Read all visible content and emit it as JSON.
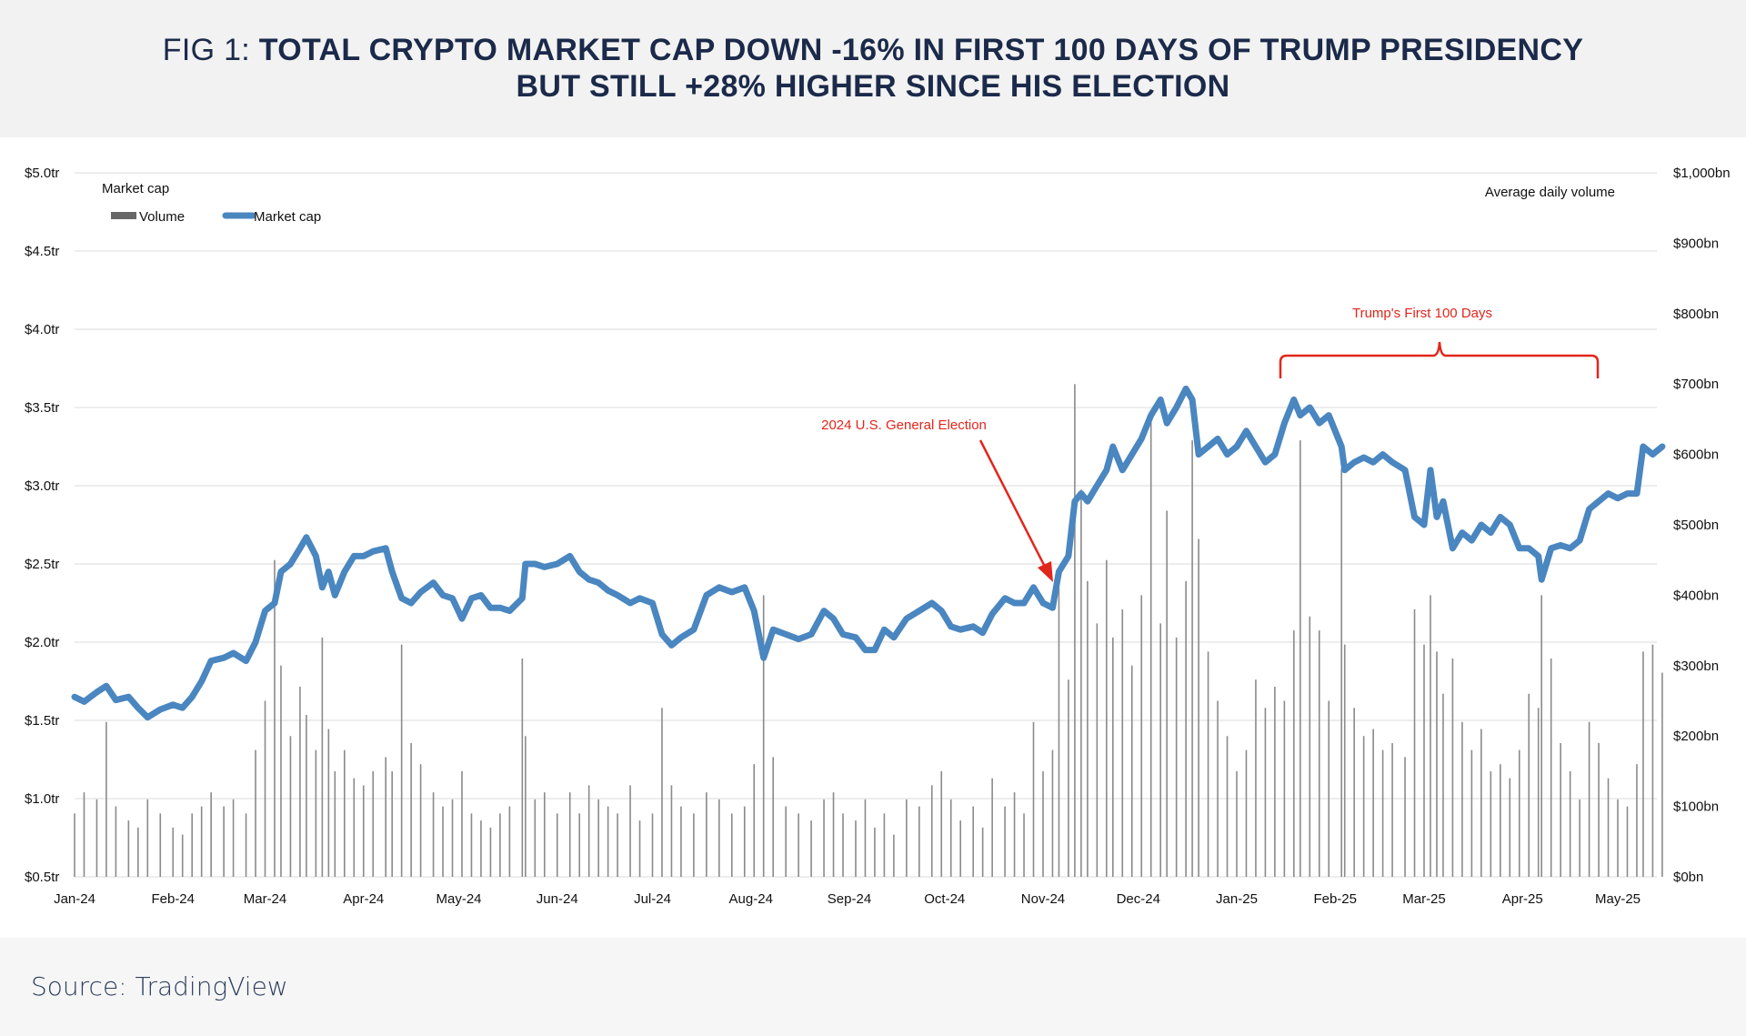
{
  "header": {
    "title_prefix": "FIG 1: ",
    "title_line1": "TOTAL CRYPTO MARKET CAP DOWN -16% IN FIRST 100 DAYS OF TRUMP PRESIDENCY",
    "title_line2": "BUT STILL +28% HIGHER SINCE HIS ELECTION"
  },
  "footer": {
    "source": "Source: TradingView"
  },
  "chart_data": {
    "type": "bar+line",
    "left_axis": {
      "label": "Market cap",
      "range": [
        0.5,
        5.0
      ],
      "ticks": [
        "$0.5tr",
        "$1.0tr",
        "$1.5tr",
        "$2.0tr",
        "$2.5tr",
        "$3.0tr",
        "$3.5tr",
        "$4.0tr",
        "$4.5tr",
        "$5.0tr"
      ]
    },
    "right_axis": {
      "label": "Average daily volume",
      "range": [
        0,
        1000
      ],
      "ticks": [
        "$0bn",
        "$100bn",
        "$200bn",
        "$300bn",
        "$400bn",
        "$500bn",
        "$600bn",
        "$700bn",
        "$800bn",
        "$900bn",
        "$1,000bn"
      ]
    },
    "x_ticks": [
      [
        "2024-01-01",
        "Jan-24"
      ],
      [
        "2024-02-01",
        "Feb-24"
      ],
      [
        "2024-03-01",
        "Mar-24"
      ],
      [
        "2024-04-01",
        "Apr-24"
      ],
      [
        "2024-05-01",
        "May-24"
      ],
      [
        "2024-06-01",
        "Jun-24"
      ],
      [
        "2024-07-01",
        "Jul-24"
      ],
      [
        "2024-08-01",
        "Aug-24"
      ],
      [
        "2024-09-01",
        "Sep-24"
      ],
      [
        "2024-10-01",
        "Oct-24"
      ],
      [
        "2024-11-01",
        "Nov-24"
      ],
      [
        "2024-12-01",
        "Dec-24"
      ],
      [
        "2025-01-01",
        "Jan-25"
      ],
      [
        "2025-02-01",
        "Feb-25"
      ],
      [
        "2025-03-01",
        "Mar-25"
      ],
      [
        "2025-04-01",
        "Apr-25"
      ],
      [
        "2025-05-01",
        "May-25"
      ]
    ],
    "grid": true,
    "legend": {
      "position": "top-left",
      "items": [
        {
          "name": "Volume",
          "color": "#666666"
        },
        {
          "name": "Market cap",
          "color": "#4a86c0"
        }
      ]
    },
    "annotations": [
      {
        "text": "2024 U.S. General Election",
        "date": "2024-11-05"
      },
      {
        "text": "Trump's First 100 Days",
        "from": "2025-01-20",
        "to": "2025-04-30"
      }
    ],
    "annotation_color": "#e1261c",
    "series_columns": [
      "date",
      "market_cap_tr",
      "volume_bn"
    ],
    "series": [
      [
        "2024-01-01",
        1.65,
        90
      ],
      [
        "2024-01-04",
        1.62,
        120
      ],
      [
        "2024-01-08",
        1.68,
        110
      ],
      [
        "2024-01-11",
        1.72,
        220
      ],
      [
        "2024-01-14",
        1.63,
        100
      ],
      [
        "2024-01-18",
        1.65,
        80
      ],
      [
        "2024-01-21",
        1.58,
        70
      ],
      [
        "2024-01-24",
        1.52,
        110
      ],
      [
        "2024-01-28",
        1.57,
        90
      ],
      [
        "2024-02-01",
        1.6,
        70
      ],
      [
        "2024-02-04",
        1.58,
        60
      ],
      [
        "2024-02-07",
        1.65,
        90
      ],
      [
        "2024-02-10",
        1.75,
        100
      ],
      [
        "2024-02-13",
        1.88,
        120
      ],
      [
        "2024-02-17",
        1.9,
        100
      ],
      [
        "2024-02-20",
        1.93,
        110
      ],
      [
        "2024-02-24",
        1.88,
        90
      ],
      [
        "2024-02-27",
        2.0,
        180
      ],
      [
        "2024-03-01",
        2.2,
        250
      ],
      [
        "2024-03-04",
        2.25,
        450
      ],
      [
        "2024-03-06",
        2.45,
        300
      ],
      [
        "2024-03-09",
        2.5,
        200
      ],
      [
        "2024-03-12",
        2.6,
        270
      ],
      [
        "2024-03-14",
        2.67,
        230
      ],
      [
        "2024-03-17",
        2.55,
        180
      ],
      [
        "2024-03-19",
        2.35,
        340
      ],
      [
        "2024-03-21",
        2.45,
        210
      ],
      [
        "2024-03-23",
        2.3,
        150
      ],
      [
        "2024-03-26",
        2.45,
        180
      ],
      [
        "2024-03-29",
        2.55,
        140
      ],
      [
        "2024-04-01",
        2.55,
        130
      ],
      [
        "2024-04-04",
        2.58,
        150
      ],
      [
        "2024-04-08",
        2.6,
        170
      ],
      [
        "2024-04-10",
        2.45,
        150
      ],
      [
        "2024-04-13",
        2.28,
        330
      ],
      [
        "2024-04-16",
        2.25,
        190
      ],
      [
        "2024-04-19",
        2.32,
        160
      ],
      [
        "2024-04-23",
        2.38,
        120
      ],
      [
        "2024-04-26",
        2.3,
        100
      ],
      [
        "2024-04-29",
        2.28,
        110
      ],
      [
        "2024-05-02",
        2.15,
        150
      ],
      [
        "2024-05-05",
        2.28,
        90
      ],
      [
        "2024-05-08",
        2.3,
        80
      ],
      [
        "2024-05-11",
        2.22,
        70
      ],
      [
        "2024-05-14",
        2.22,
        90
      ],
      [
        "2024-05-17",
        2.2,
        100
      ],
      [
        "2024-05-21",
        2.28,
        310
      ],
      [
        "2024-05-22",
        2.5,
        200
      ],
      [
        "2024-05-25",
        2.5,
        110
      ],
      [
        "2024-05-28",
        2.48,
        120
      ],
      [
        "2024-06-01",
        2.5,
        90
      ],
      [
        "2024-06-05",
        2.55,
        120
      ],
      [
        "2024-06-08",
        2.45,
        90
      ],
      [
        "2024-06-11",
        2.4,
        130
      ],
      [
        "2024-06-14",
        2.38,
        110
      ],
      [
        "2024-06-17",
        2.33,
        100
      ],
      [
        "2024-06-20",
        2.3,
        90
      ],
      [
        "2024-06-24",
        2.25,
        130
      ],
      [
        "2024-06-27",
        2.28,
        80
      ],
      [
        "2024-07-01",
        2.25,
        90
      ],
      [
        "2024-07-04",
        2.05,
        240
      ],
      [
        "2024-07-07",
        1.98,
        130
      ],
      [
        "2024-07-10",
        2.03,
        100
      ],
      [
        "2024-07-14",
        2.08,
        90
      ],
      [
        "2024-07-18",
        2.3,
        120
      ],
      [
        "2024-07-22",
        2.35,
        110
      ],
      [
        "2024-07-26",
        2.32,
        90
      ],
      [
        "2024-07-30",
        2.35,
        100
      ],
      [
        "2024-08-02",
        2.2,
        160
      ],
      [
        "2024-08-05",
        1.9,
        400
      ],
      [
        "2024-08-08",
        2.08,
        170
      ],
      [
        "2024-08-12",
        2.05,
        100
      ],
      [
        "2024-08-16",
        2.02,
        90
      ],
      [
        "2024-08-20",
        2.05,
        80
      ],
      [
        "2024-08-24",
        2.2,
        110
      ],
      [
        "2024-08-27",
        2.15,
        120
      ],
      [
        "2024-08-30",
        2.05,
        90
      ],
      [
        "2024-09-03",
        2.03,
        80
      ],
      [
        "2024-09-06",
        1.95,
        110
      ],
      [
        "2024-09-09",
        1.95,
        70
      ],
      [
        "2024-09-12",
        2.08,
        90
      ],
      [
        "2024-09-15",
        2.03,
        60
      ],
      [
        "2024-09-19",
        2.15,
        110
      ],
      [
        "2024-09-23",
        2.2,
        100
      ],
      [
        "2024-09-27",
        2.25,
        130
      ],
      [
        "2024-09-30",
        2.2,
        150
      ],
      [
        "2024-10-03",
        2.1,
        110
      ],
      [
        "2024-10-06",
        2.08,
        80
      ],
      [
        "2024-10-10",
        2.1,
        100
      ],
      [
        "2024-10-13",
        2.06,
        70
      ],
      [
        "2024-10-16",
        2.18,
        140
      ],
      [
        "2024-10-20",
        2.28,
        100
      ],
      [
        "2024-10-23",
        2.25,
        120
      ],
      [
        "2024-10-26",
        2.25,
        90
      ],
      [
        "2024-10-29",
        2.35,
        220
      ],
      [
        "2024-11-01",
        2.25,
        150
      ],
      [
        "2024-11-04",
        2.22,
        180
      ],
      [
        "2024-11-06",
        2.45,
        410
      ],
      [
        "2024-11-09",
        2.55,
        280
      ],
      [
        "2024-11-11",
        2.9,
        700
      ],
      [
        "2024-11-13",
        2.95,
        550
      ],
      [
        "2024-11-15",
        2.9,
        420
      ],
      [
        "2024-11-18",
        3.0,
        360
      ],
      [
        "2024-11-21",
        3.1,
        450
      ],
      [
        "2024-11-23",
        3.25,
        340
      ],
      [
        "2024-11-26",
        3.1,
        380
      ],
      [
        "2024-11-29",
        3.2,
        300
      ],
      [
        "2024-12-02",
        3.3,
        400
      ],
      [
        "2024-12-05",
        3.45,
        650
      ],
      [
        "2024-12-08",
        3.55,
        360
      ],
      [
        "2024-12-10",
        3.4,
        520
      ],
      [
        "2024-12-13",
        3.5,
        340
      ],
      [
        "2024-12-16",
        3.62,
        420
      ],
      [
        "2024-12-18",
        3.55,
        620
      ],
      [
        "2024-12-20",
        3.2,
        480
      ],
      [
        "2024-12-23",
        3.25,
        320
      ],
      [
        "2024-12-26",
        3.3,
        250
      ],
      [
        "2024-12-29",
        3.2,
        200
      ],
      [
        "2025-01-01",
        3.25,
        150
      ],
      [
        "2025-01-04",
        3.35,
        180
      ],
      [
        "2025-01-07",
        3.25,
        280
      ],
      [
        "2025-01-10",
        3.15,
        240
      ],
      [
        "2025-01-13",
        3.2,
        270
      ],
      [
        "2025-01-16",
        3.4,
        250
      ],
      [
        "2025-01-19",
        3.55,
        350
      ],
      [
        "2025-01-21",
        3.45,
        620
      ],
      [
        "2025-01-24",
        3.5,
        370
      ],
      [
        "2025-01-27",
        3.4,
        350
      ],
      [
        "2025-01-30",
        3.45,
        250
      ],
      [
        "2025-02-03",
        3.25,
        580
      ],
      [
        "2025-02-04",
        3.1,
        330
      ],
      [
        "2025-02-07",
        3.15,
        240
      ],
      [
        "2025-02-10",
        3.18,
        200
      ],
      [
        "2025-02-13",
        3.15,
        210
      ],
      [
        "2025-02-16",
        3.2,
        180
      ],
      [
        "2025-02-19",
        3.15,
        190
      ],
      [
        "2025-02-23",
        3.1,
        170
      ],
      [
        "2025-02-26",
        2.8,
        380
      ],
      [
        "2025-03-01",
        2.75,
        330
      ],
      [
        "2025-03-03",
        3.1,
        400
      ],
      [
        "2025-03-05",
        2.8,
        320
      ],
      [
        "2025-03-07",
        2.9,
        260
      ],
      [
        "2025-03-10",
        2.6,
        310
      ],
      [
        "2025-03-13",
        2.7,
        220
      ],
      [
        "2025-03-16",
        2.65,
        180
      ],
      [
        "2025-03-19",
        2.75,
        210
      ],
      [
        "2025-03-22",
        2.7,
        150
      ],
      [
        "2025-03-25",
        2.8,
        160
      ],
      [
        "2025-03-28",
        2.75,
        140
      ],
      [
        "2025-03-31",
        2.6,
        180
      ],
      [
        "2025-04-03",
        2.6,
        260
      ],
      [
        "2025-04-06",
        2.55,
        240
      ],
      [
        "2025-04-07",
        2.4,
        400
      ],
      [
        "2025-04-10",
        2.6,
        310
      ],
      [
        "2025-04-13",
        2.62,
        190
      ],
      [
        "2025-04-16",
        2.6,
        150
      ],
      [
        "2025-04-19",
        2.65,
        110
      ],
      [
        "2025-04-22",
        2.85,
        220
      ],
      [
        "2025-04-25",
        2.9,
        190
      ],
      [
        "2025-04-28",
        2.95,
        140
      ],
      [
        "2025-05-01",
        2.92,
        110
      ],
      [
        "2025-05-04",
        2.95,
        100
      ],
      [
        "2025-05-07",
        2.95,
        160
      ],
      [
        "2025-05-09",
        3.25,
        320
      ],
      [
        "2025-05-12",
        3.2,
        330
      ],
      [
        "2025-05-15",
        3.25,
        290
      ]
    ]
  }
}
